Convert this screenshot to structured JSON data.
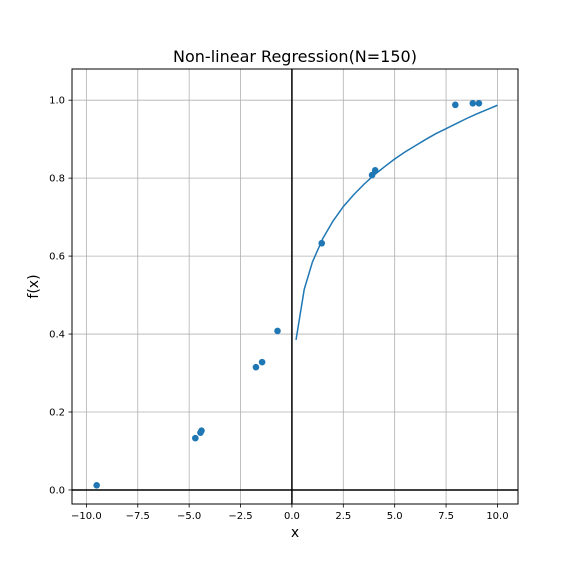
{
  "chart_data": {
    "type": "scatter",
    "title": "Non-linear Regression(N=150)",
    "xlabel": "x",
    "ylabel": "f(x)",
    "xlim": [
      -10.7,
      11.0
    ],
    "ylim": [
      -0.036,
      1.08
    ],
    "x_ticks": [
      -10.0,
      -7.5,
      -5.0,
      -2.5,
      0.0,
      2.5,
      5.0,
      7.5,
      10.0
    ],
    "x_tick_labels": [
      "−10.0",
      "−7.5",
      "−5.0",
      "−2.5",
      "0.0",
      "2.5",
      "5.0",
      "7.5",
      "10.0"
    ],
    "y_ticks": [
      0.0,
      0.2,
      0.4,
      0.6,
      0.8,
      1.0
    ],
    "y_tick_labels": [
      "0.0",
      "0.2",
      "0.4",
      "0.6",
      "0.8",
      "1.0"
    ],
    "grid": true,
    "reference_lines": {
      "x": 0,
      "y": 0
    },
    "color": "#1f77b4",
    "series": [
      {
        "type": "scatter",
        "x": [
          -9.5,
          -4.7,
          -4.45,
          -4.4,
          -1.75,
          -1.45,
          -0.7,
          1.45,
          3.9,
          4.05,
          7.95,
          8.8,
          9.1
        ],
        "y": [
          0.012,
          0.133,
          0.147,
          0.152,
          0.315,
          0.328,
          0.408,
          0.633,
          0.808,
          0.82,
          0.988,
          0.992,
          0.992
        ]
      },
      {
        "type": "line",
        "x": [
          0.2,
          0.6,
          1.0,
          1.5,
          2.0,
          2.5,
          3.0,
          3.5,
          4.0,
          4.5,
          5.0,
          5.5,
          6.0,
          6.5,
          7.0,
          7.5,
          8.0,
          8.5,
          9.0,
          9.5,
          10.0
        ],
        "y": [
          0.385,
          0.515,
          0.585,
          0.645,
          0.69,
          0.727,
          0.757,
          0.784,
          0.808,
          0.829,
          0.849,
          0.867,
          0.883,
          0.899,
          0.914,
          0.927,
          0.94,
          0.953,
          0.965,
          0.976,
          0.987
        ]
      }
    ]
  }
}
